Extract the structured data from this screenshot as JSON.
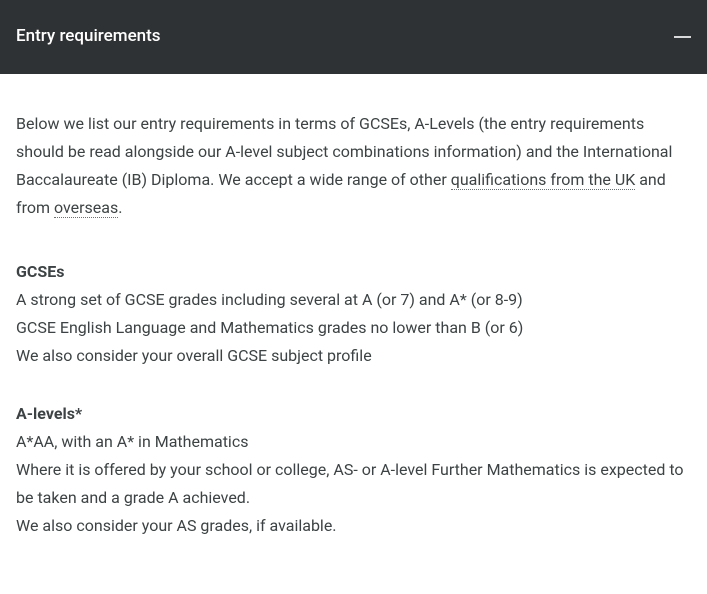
{
  "header": {
    "title": "Entry requirements"
  },
  "intro": {
    "part1": "Below we list our entry requirements in terms of GCSEs, A-Levels (the entry requirements should be read alongside our A-level subject combinations information) and the International Baccalaureate (IB) Diploma. We accept a wide range of other ",
    "link1": "qualifications from the UK",
    "part2": " and from ",
    "link2": "overseas",
    "part3": "."
  },
  "gcse": {
    "heading": "GCSEs",
    "line1": "A strong set of GCSE grades including several at A (or 7) and A* (or 8-9)",
    "line2": "GCSE English Language and Mathematics grades no lower than B (or 6)",
    "line3": "We also consider your overall GCSE subject profile"
  },
  "alevels": {
    "heading": "A-levels*",
    "line1": "A*AA, with an A* in Mathematics",
    "line2": "Where it is offered by your school or college, AS- or A-level Further Mathematics is expected to be taken and a grade A achieved.",
    "line3": "We also consider your AS grades, if available."
  }
}
